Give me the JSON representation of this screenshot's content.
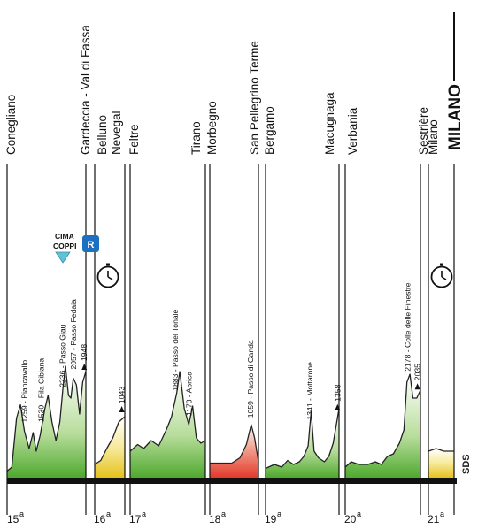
{
  "colors": {
    "mountain": "#4fa92f",
    "hilly": "#e5c21e",
    "time_trial": "#e2392b",
    "rest_day_badge": "#1d6fc0",
    "cima_coppi": "#5ec3d6",
    "axis": "#111111"
  },
  "final_destination": "MILANO",
  "watermark": "SDS",
  "cima_coppi": {
    "line1": "CIMA",
    "line2": "COPPI",
    "icon": "triangle-down-icon"
  },
  "rest_day": {
    "label": "R",
    "icon": "rest-day-badge"
  },
  "stages": [
    {
      "number": "15",
      "suffix": "a",
      "color": "mountain",
      "towns": [
        "Conegliano",
        "Gardeccia - Val di Fassa"
      ],
      "climbs": [
        {
          "label": "1259 - Piancavallo"
        },
        {
          "label": "1530 - Fila Cibiana"
        },
        {
          "label": "2236 - Passo Giau"
        },
        {
          "label": "2057 - Passo Fedaia"
        },
        {
          "label": "1948"
        }
      ],
      "profile": [
        [
          0,
          0.05
        ],
        [
          0.06,
          0.08
        ],
        [
          0.12,
          0.45
        ],
        [
          0.17,
          0.55
        ],
        [
          0.22,
          0.35
        ],
        [
          0.28,
          0.22
        ],
        [
          0.33,
          0.34
        ],
        [
          0.37,
          0.2
        ],
        [
          0.42,
          0.32
        ],
        [
          0.48,
          0.52
        ],
        [
          0.52,
          0.62
        ],
        [
          0.57,
          0.42
        ],
        [
          0.62,
          0.28
        ],
        [
          0.67,
          0.42
        ],
        [
          0.71,
          0.68
        ],
        [
          0.74,
          0.84
        ],
        [
          0.78,
          0.62
        ],
        [
          0.81,
          0.6
        ],
        [
          0.84,
          0.75
        ],
        [
          0.88,
          0.7
        ],
        [
          0.92,
          0.48
        ],
        [
          0.96,
          0.72
        ],
        [
          1,
          0.8
        ]
      ]
    },
    {
      "number": "16",
      "suffix": "a",
      "color": "hilly",
      "towns": [
        "Belluno",
        "Nevegal"
      ],
      "climbs": [
        {
          "label": "1043"
        }
      ],
      "profile": [
        [
          0,
          0.1
        ],
        [
          0.2,
          0.13
        ],
        [
          0.4,
          0.22
        ],
        [
          0.6,
          0.3
        ],
        [
          0.8,
          0.42
        ],
        [
          1,
          0.46
        ]
      ]
    },
    {
      "number": "17",
      "suffix": "a",
      "color": "mountain",
      "towns": [
        "Feltre",
        "Tirano"
      ],
      "climbs": [
        {
          "label": "1883 - Passo del Tonale"
        },
        {
          "label": "1173 - Aprica"
        }
      ],
      "profile": [
        [
          0,
          0.2
        ],
        [
          0.1,
          0.25
        ],
        [
          0.18,
          0.22
        ],
        [
          0.28,
          0.28
        ],
        [
          0.38,
          0.24
        ],
        [
          0.48,
          0.36
        ],
        [
          0.55,
          0.46
        ],
        [
          0.62,
          0.64
        ],
        [
          0.66,
          0.8
        ],
        [
          0.72,
          0.52
        ],
        [
          0.78,
          0.4
        ],
        [
          0.83,
          0.54
        ],
        [
          0.88,
          0.3
        ],
        [
          0.94,
          0.26
        ],
        [
          1,
          0.28
        ]
      ]
    },
    {
      "number": "18",
      "suffix": "a",
      "color": "time_trial",
      "towns": [
        "Morbegno",
        "San Pellegrino Terme"
      ],
      "climbs": [
        {
          "label": "1059 - Passo di Ganda"
        }
      ],
      "profile": [
        [
          0,
          0.11
        ],
        [
          0.2,
          0.11
        ],
        [
          0.45,
          0.11
        ],
        [
          0.62,
          0.15
        ],
        [
          0.75,
          0.25
        ],
        [
          0.85,
          0.4
        ],
        [
          0.92,
          0.3
        ],
        [
          1,
          0.12
        ]
      ]
    },
    {
      "number": "19",
      "suffix": "a",
      "color": "mountain",
      "towns": [
        "Bergamo",
        "Macugnaga"
      ],
      "climbs": [
        {
          "label": "1341 - Mottarone"
        },
        {
          "label": "1358"
        }
      ],
      "profile": [
        [
          0,
          0.07
        ],
        [
          0.12,
          0.1
        ],
        [
          0.22,
          0.08
        ],
        [
          0.3,
          0.13
        ],
        [
          0.38,
          0.1
        ],
        [
          0.46,
          0.12
        ],
        [
          0.52,
          0.16
        ],
        [
          0.58,
          0.24
        ],
        [
          0.62,
          0.5
        ],
        [
          0.66,
          0.2
        ],
        [
          0.72,
          0.15
        ],
        [
          0.8,
          0.12
        ],
        [
          0.86,
          0.16
        ],
        [
          0.92,
          0.26
        ],
        [
          1,
          0.52
        ]
      ]
    },
    {
      "number": "20",
      "suffix": "a",
      "color": "mountain",
      "towns": [
        "Verbania",
        "Sestrière"
      ],
      "climbs": [
        {
          "label": "2178 - Colle delle Finestre"
        },
        {
          "label": "2035"
        }
      ],
      "profile": [
        [
          0,
          0.08
        ],
        [
          0.08,
          0.12
        ],
        [
          0.18,
          0.1
        ],
        [
          0.3,
          0.1
        ],
        [
          0.4,
          0.12
        ],
        [
          0.48,
          0.1
        ],
        [
          0.56,
          0.16
        ],
        [
          0.64,
          0.18
        ],
        [
          0.72,
          0.26
        ],
        [
          0.78,
          0.36
        ],
        [
          0.82,
          0.72
        ],
        [
          0.86,
          0.78
        ],
        [
          0.9,
          0.6
        ],
        [
          0.95,
          0.6
        ],
        [
          1,
          0.66
        ]
      ]
    },
    {
      "number": "21",
      "suffix": "a",
      "color": "hilly",
      "towns": [
        "Milano"
      ],
      "climbs": [],
      "profile": [
        [
          0,
          0.2
        ],
        [
          0.3,
          0.22
        ],
        [
          0.6,
          0.2
        ],
        [
          1,
          0.2
        ]
      ]
    }
  ]
}
